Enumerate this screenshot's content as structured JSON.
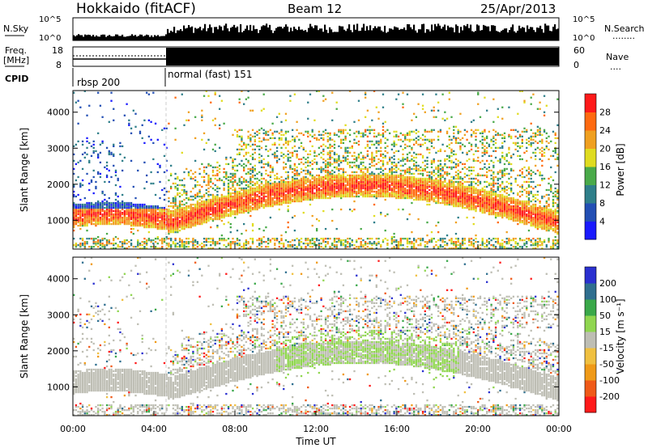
{
  "header": {
    "station": "Hokkaido (fitACF)",
    "beam": "Beam 12",
    "date": "25/Apr/2013"
  },
  "param_panel": {
    "nsky_label": "N.Sky",
    "nsearch_label": "N.Search",
    "nsearch_dots": "........",
    "freq_label_line1": "Freq.",
    "freq_label_line2": "[MHz]",
    "nave_label": "Nave",
    "nave_dots": "....",
    "cpid_label": "CPID",
    "noise_ticks": [
      "10^5",
      "10^0"
    ],
    "freq_ticks": [
      "18",
      "8"
    ],
    "nave_ticks": [
      "60",
      "0"
    ],
    "cpid_segments": [
      {
        "label": "rbsp 200",
        "start_hour": 0.0,
        "end_hour": 4.6
      },
      {
        "label": "normal (fast) 151",
        "start_hour": 4.6,
        "end_hour": 24.0
      }
    ]
  },
  "chart_data": [
    {
      "type": "heatmap",
      "panel": "power",
      "ylabel": "Slant Range [km]",
      "ylim": [
        200,
        4600
      ],
      "yticks": [
        "1000",
        "2000",
        "3000",
        "4000"
      ],
      "xlim": [
        0,
        24
      ],
      "colorbar_label": "Power [dB]",
      "colorbar_ticks": [
        "4",
        "8",
        "12",
        "16",
        "20",
        "24",
        "28"
      ],
      "colorbar_colors": [
        "#1a1aff",
        "#234fb4",
        "#2f7f8a",
        "#4aaa4a",
        "#e0dc20",
        "#f0a020",
        "#ff6a10",
        "#ff1a1a"
      ],
      "colorbar_range": [
        0,
        30
      ]
    },
    {
      "type": "heatmap",
      "panel": "velocity",
      "ylabel": "Slant Range [km]",
      "ylim": [
        200,
        4600
      ],
      "yticks": [
        "1000",
        "2000",
        "3000",
        "4000"
      ],
      "xlim": [
        0,
        24
      ],
      "xlabel": "Time UT",
      "xticks": [
        "00:00",
        "04:00",
        "08:00",
        "12:00",
        "16:00",
        "20:00",
        "00:00"
      ],
      "colorbar_label": "Velocity [m s⁻¹]",
      "colorbar_ticks": [
        "-200",
        "-100",
        "-50",
        "-15",
        "15",
        "50",
        "100",
        "200"
      ],
      "colorbar_colors": [
        "#ff1a1a",
        "#f05a18",
        "#f09a18",
        "#f0c040",
        "#bebeb4",
        "#90d650",
        "#3aa84a",
        "#2f6f8f",
        "#2a30d0"
      ]
    }
  ]
}
